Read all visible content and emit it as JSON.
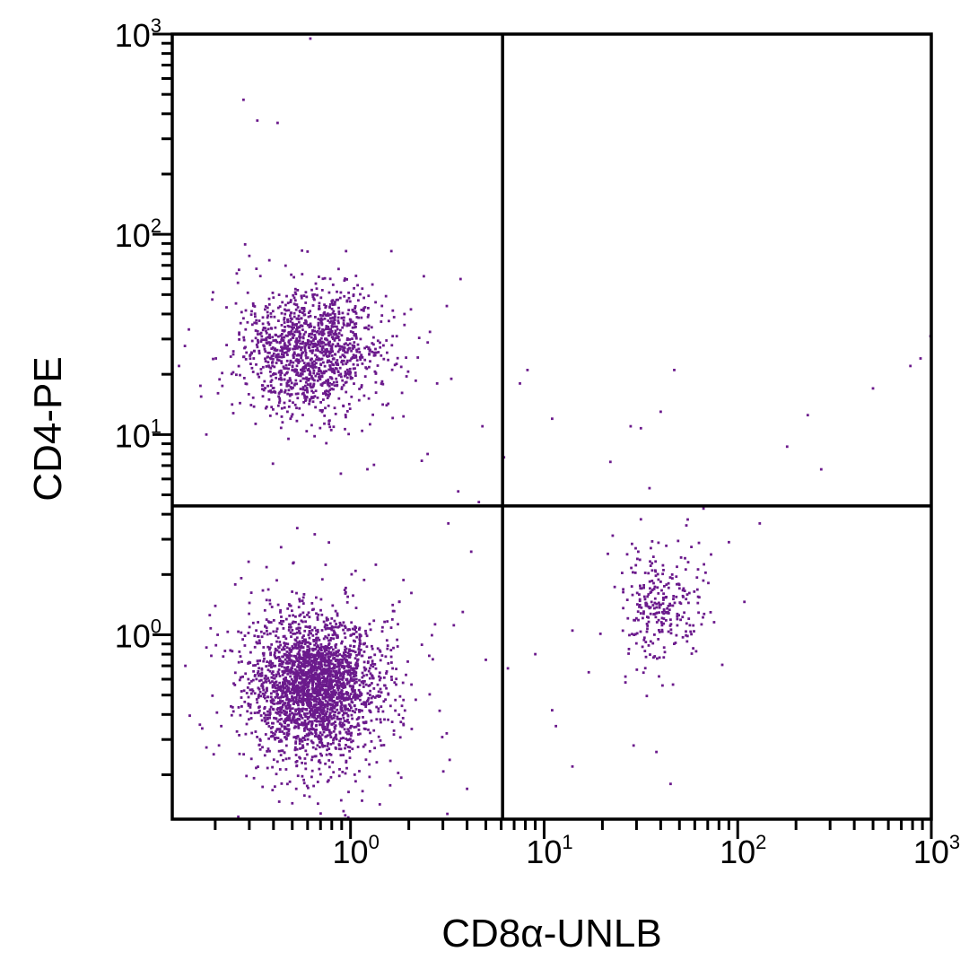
{
  "chart_data": {
    "type": "scatter",
    "title": "",
    "xlabel": "CD8α-UNLB",
    "ylabel": "CD4-PE",
    "x_scale": "log",
    "y_scale": "log",
    "xlim": [
      0.12,
      1000
    ],
    "ylim": [
      0.12,
      1000
    ],
    "grid": false,
    "legend": "none",
    "point_color": "#6b1a8c",
    "x_ticks": [
      {
        "base": "10",
        "exp": "0",
        "value": 1
      },
      {
        "base": "10",
        "exp": "1",
        "value": 10
      },
      {
        "base": "10",
        "exp": "2",
        "value": 100
      },
      {
        "base": "10",
        "exp": "3",
        "value": 1000
      }
    ],
    "y_ticks": [
      {
        "base": "10",
        "exp": "0",
        "value": 1
      },
      {
        "base": "10",
        "exp": "1",
        "value": 10
      },
      {
        "base": "10",
        "exp": "2",
        "value": 100
      },
      {
        "base": "10",
        "exp": "3",
        "value": 1000
      }
    ],
    "quadrant_gate": {
      "x": 6.1,
      "y": 4.4
    },
    "populations": [
      {
        "center_x": 0.65,
        "center_y": 0.55,
        "spread_x_log": 0.16,
        "spread_y_log": 0.17,
        "count": 2600
      },
      {
        "center_x": 0.62,
        "center_y": 26,
        "spread_x_log": 0.17,
        "spread_y_log": 0.15,
        "count": 1300
      },
      {
        "center_x": 40,
        "center_y": 1.4,
        "spread_x_log": 0.1,
        "spread_y_log": 0.13,
        "count": 280
      }
    ],
    "outliers": [
      {
        "x": 0.62,
        "y": 950
      },
      {
        "x": 0.28,
        "y": 470
      },
      {
        "x": 0.33,
        "y": 370
      },
      {
        "x": 0.42,
        "y": 360
      },
      {
        "x": 0.3,
        "y": 78
      },
      {
        "x": 0.6,
        "y": 82
      },
      {
        "x": 1.9,
        "y": 40
      },
      {
        "x": 2.8,
        "y": 18
      },
      {
        "x": 4.8,
        "y": 11
      },
      {
        "x": 2.5,
        "y": 8
      },
      {
        "x": 3.6,
        "y": 5.2
      },
      {
        "x": 4.6,
        "y": 4.6
      },
      {
        "x": 3.2,
        "y": 3.6
      },
      {
        "x": 4.2,
        "y": 2.6
      },
      {
        "x": 3.8,
        "y": 1.3
      },
      {
        "x": 5.0,
        "y": 0.75
      },
      {
        "x": 4.0,
        "y": 0.17
      },
      {
        "x": 0.13,
        "y": 22
      },
      {
        "x": 0.18,
        "y": 10
      },
      {
        "x": 7.5,
        "y": 18
      },
      {
        "x": 8.2,
        "y": 21
      },
      {
        "x": 11,
        "y": 12
      },
      {
        "x": 6.2,
        "y": 7.7
      },
      {
        "x": 28,
        "y": 11
      },
      {
        "x": 47,
        "y": 21
      },
      {
        "x": 40,
        "y": 13
      },
      {
        "x": 22,
        "y": 7.3
      },
      {
        "x": 35,
        "y": 5.4
      },
      {
        "x": 180,
        "y": 8.7
      },
      {
        "x": 230,
        "y": 12.5
      },
      {
        "x": 270,
        "y": 6.7
      },
      {
        "x": 500,
        "y": 17
      },
      {
        "x": 780,
        "y": 22
      },
      {
        "x": 880,
        "y": 24
      },
      {
        "x": 990,
        "y": 31
      },
      {
        "x": 130,
        "y": 3.6
      },
      {
        "x": 90,
        "y": 2.9
      },
      {
        "x": 9,
        "y": 0.8
      },
      {
        "x": 6.5,
        "y": 0.68
      },
      {
        "x": 11,
        "y": 0.42
      },
      {
        "x": 11.5,
        "y": 0.35
      },
      {
        "x": 14,
        "y": 0.22
      },
      {
        "x": 14,
        "y": 1.05
      },
      {
        "x": 17,
        "y": 0.65
      },
      {
        "x": 29,
        "y": 0.28
      },
      {
        "x": 45,
        "y": 0.18
      },
      {
        "x": 38,
        "y": 0.26
      }
    ]
  }
}
